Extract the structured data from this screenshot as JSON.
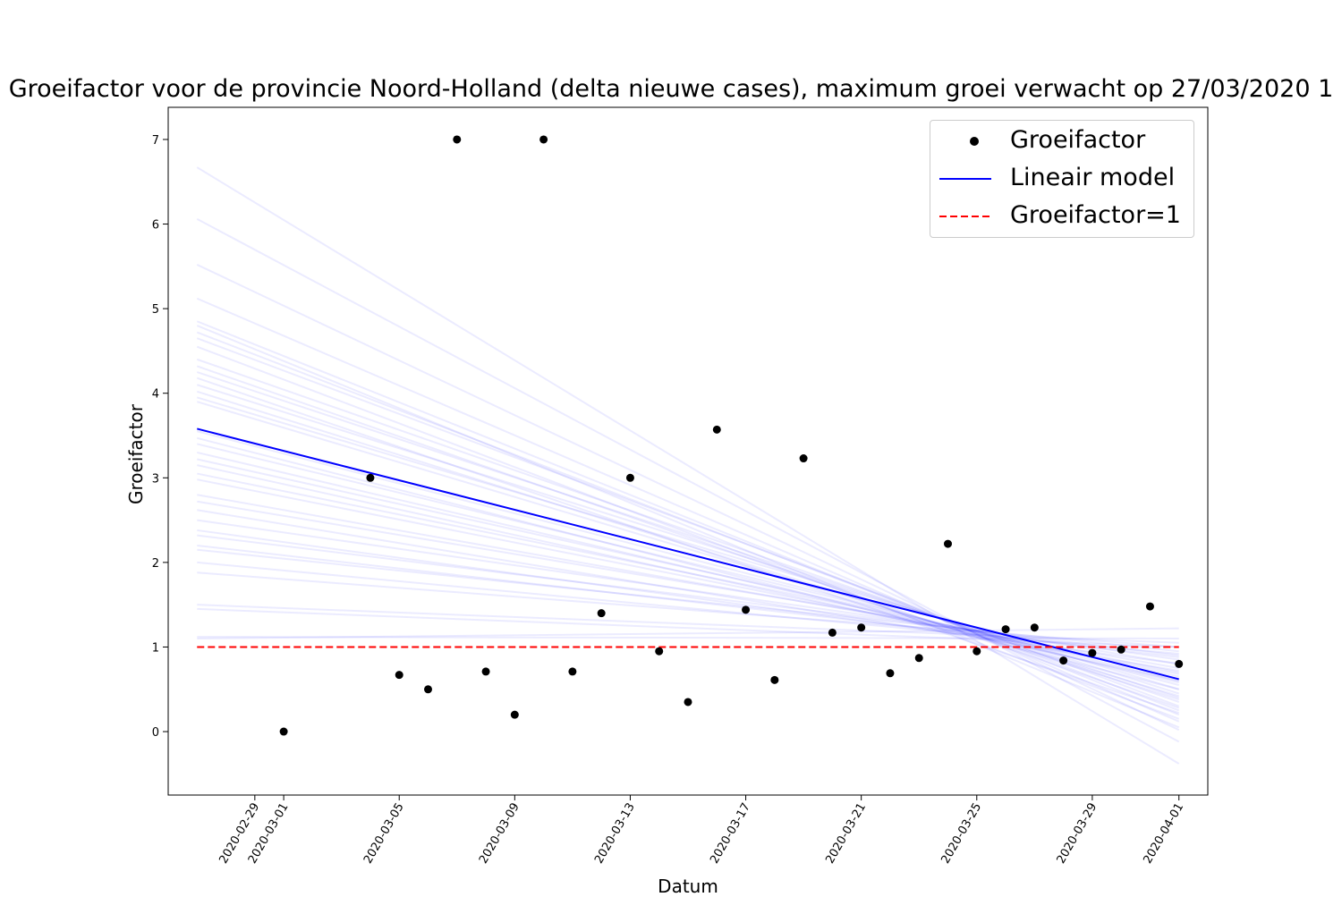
{
  "chart_data": {
    "type": "scatter",
    "title": "Groeifactor voor de provincie Noord-Holland (delta nieuwe cases), maximum groei verwacht op 27/03/2020 1",
    "xlabel": "Datum",
    "ylabel": "Groeifactor",
    "xlim": [
      "2020-02-26",
      "2020-04-02"
    ],
    "ylim": [
      -0.75,
      7.38
    ],
    "grid": false,
    "legend_position": "top-right",
    "x_ticks": [
      "2020-02-29",
      "2020-03-01",
      "2020-03-05",
      "2020-03-09",
      "2020-03-13",
      "2020-03-17",
      "2020-03-21",
      "2020-03-25",
      "2020-03-29",
      "2020-04-01"
    ],
    "y_ticks": [
      0,
      1,
      2,
      3,
      4,
      5,
      6,
      7
    ],
    "series": [
      {
        "name": "Groeifactor",
        "kind": "scatter",
        "color": "#000000",
        "points": [
          {
            "x": "2020-03-01",
            "y": 0.0
          },
          {
            "x": "2020-03-04",
            "y": 3.0
          },
          {
            "x": "2020-03-05",
            "y": 0.67
          },
          {
            "x": "2020-03-06",
            "y": 0.5
          },
          {
            "x": "2020-03-07",
            "y": 7.0
          },
          {
            "x": "2020-03-08",
            "y": 0.71
          },
          {
            "x": "2020-03-09",
            "y": 0.2
          },
          {
            "x": "2020-03-10",
            "y": 7.0
          },
          {
            "x": "2020-03-11",
            "y": 0.71
          },
          {
            "x": "2020-03-12",
            "y": 1.4
          },
          {
            "x": "2020-03-13",
            "y": 3.0
          },
          {
            "x": "2020-03-14",
            "y": 0.95
          },
          {
            "x": "2020-03-15",
            "y": 0.35
          },
          {
            "x": "2020-03-16",
            "y": 3.57
          },
          {
            "x": "2020-03-17",
            "y": 1.44
          },
          {
            "x": "2020-03-18",
            "y": 0.61
          },
          {
            "x": "2020-03-19",
            "y": 3.23
          },
          {
            "x": "2020-03-20",
            "y": 1.17
          },
          {
            "x": "2020-03-21",
            "y": 1.23
          },
          {
            "x": "2020-03-22",
            "y": 0.69
          },
          {
            "x": "2020-03-23",
            "y": 0.87
          },
          {
            "x": "2020-03-24",
            "y": 2.22
          },
          {
            "x": "2020-03-25",
            "y": 0.95
          },
          {
            "x": "2020-03-26",
            "y": 1.21
          },
          {
            "x": "2020-03-27",
            "y": 1.23
          },
          {
            "x": "2020-03-28",
            "y": 0.84
          },
          {
            "x": "2020-03-29",
            "y": 0.93
          },
          {
            "x": "2020-03-30",
            "y": 0.97
          },
          {
            "x": "2020-03-31",
            "y": 1.48
          },
          {
            "x": "2020-04-01",
            "y": 0.8
          }
        ]
      },
      {
        "name": "Lineair model",
        "kind": "line",
        "color": "#0000ff",
        "points": [
          {
            "x": "2020-02-27",
            "y": 3.58
          },
          {
            "x": "2020-04-01",
            "y": 0.62
          }
        ]
      },
      {
        "name": "Groeifactor=1",
        "kind": "dashed-line",
        "color": "#ff0000",
        "points": [
          {
            "x": "2020-02-27",
            "y": 1.0
          },
          {
            "x": "2020-04-01",
            "y": 1.0
          }
        ]
      }
    ],
    "bootstrap_lines": {
      "color": "#0000ff",
      "x": [
        "2020-02-27",
        "2020-04-01"
      ],
      "lines": [
        [
          6.67,
          -0.38
        ],
        [
          6.06,
          -0.12
        ],
        [
          5.52,
          0.02
        ],
        [
          5.12,
          0.12
        ],
        [
          4.85,
          0.2
        ],
        [
          4.8,
          0.05
        ],
        [
          4.72,
          0.25
        ],
        [
          4.65,
          0.3
        ],
        [
          4.55,
          0.15
        ],
        [
          4.4,
          0.35
        ],
        [
          4.32,
          0.28
        ],
        [
          4.25,
          0.4
        ],
        [
          4.18,
          0.22
        ],
        [
          4.1,
          0.45
        ],
        [
          4.02,
          0.38
        ],
        [
          3.95,
          0.5
        ],
        [
          3.9,
          0.42
        ],
        [
          3.55,
          0.55
        ],
        [
          3.47,
          0.5
        ],
        [
          3.4,
          0.6
        ],
        [
          3.3,
          0.58
        ],
        [
          3.22,
          0.65
        ],
        [
          3.15,
          0.6
        ],
        [
          3.05,
          0.7
        ],
        [
          2.98,
          0.68
        ],
        [
          2.8,
          0.75
        ],
        [
          2.72,
          0.8
        ],
        [
          2.62,
          0.72
        ],
        [
          2.5,
          0.85
        ],
        [
          2.38,
          0.8
        ],
        [
          2.32,
          0.9
        ],
        [
          2.2,
          0.88
        ],
        [
          2.15,
          0.95
        ],
        [
          2.0,
          0.92
        ],
        [
          1.88,
          1.0
        ],
        [
          1.5,
          1.05
        ],
        [
          1.45,
          1.0
        ],
        [
          1.12,
          1.1
        ],
        [
          1.1,
          1.22
        ]
      ]
    }
  },
  "legend": {
    "items": [
      {
        "label": "Groeifactor"
      },
      {
        "label": "Lineair model"
      },
      {
        "label": "Groeifactor=1"
      }
    ]
  }
}
